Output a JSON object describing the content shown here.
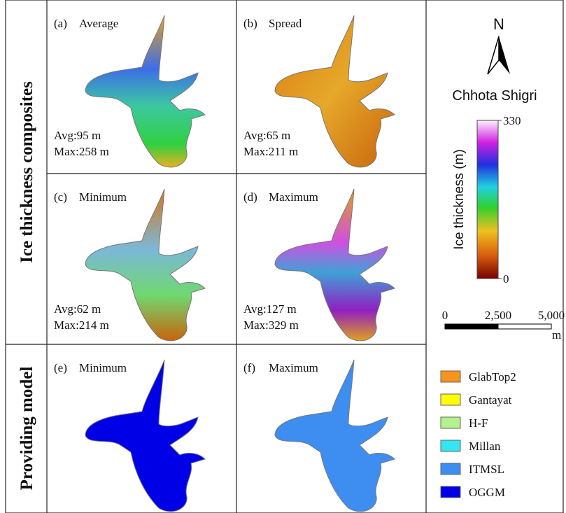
{
  "row_labels": [
    "Ice thickness composites",
    "Providing model"
  ],
  "panels": [
    {
      "label": "(a)",
      "title": "Average",
      "stats": [
        "Avg:95 m",
        "Max:258 m"
      ]
    },
    {
      "label": "(b)",
      "title": "Spread",
      "stats": [
        "Avg:65 m",
        "Max:211 m"
      ]
    },
    {
      "label": "(c)",
      "title": "Minimum",
      "stats": [
        "Avg:62 m",
        "Max:214 m"
      ]
    },
    {
      "label": "(d)",
      "title": "Maximum",
      "stats": [
        "Avg:127 m",
        "Max:329 m"
      ]
    },
    {
      "label": "(e)",
      "title": "Minimum"
    },
    {
      "label": "(f)",
      "title": "Maximum"
    }
  ],
  "north": "N",
  "site": "Chhota Shigri",
  "colorbar": {
    "title": "Ice thickness (m)",
    "lim": [
      0,
      330
    ],
    "ticks": [
      0,
      330
    ]
  },
  "scale_bar": {
    "lim": [
      0,
      5000
    ],
    "ticks": [
      0,
      {
        "value": 2500,
        "label": "2,500"
      },
      {
        "value": 5000,
        "label": "5,000"
      }
    ],
    "unit": "m"
  },
  "legend": [
    {
      "name": "GlabTop2",
      "color": "#f7941d"
    },
    {
      "name": "Gantayat",
      "color": "#ffff00"
    },
    {
      "name": "H-F",
      "color": "#b3f28c"
    },
    {
      "name": "Millan",
      "color": "#33e6f2"
    },
    {
      "name": "ITMSL",
      "color": "#3d8ef0"
    },
    {
      "name": "OGGM",
      "color": "#0000e6"
    }
  ]
}
